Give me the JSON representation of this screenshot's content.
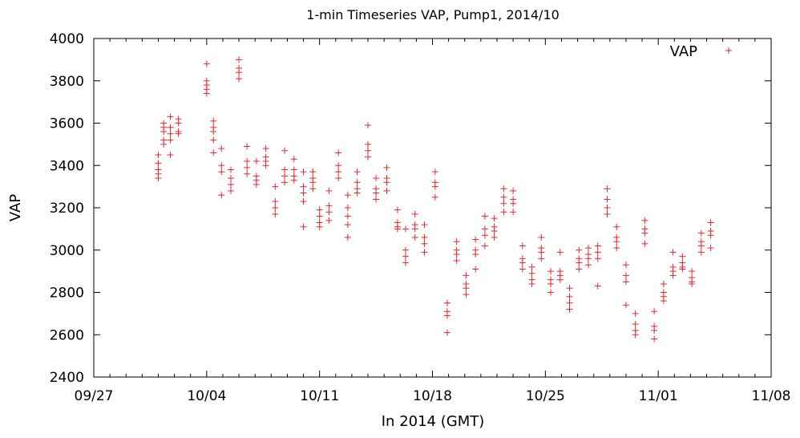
{
  "chart_data": {
    "type": "scatter",
    "title": "1-min Timeseries VAP, Pump1, 2014/10",
    "xlabel": "In 2014 (GMT)",
    "ylabel": "VAP",
    "x_unit": "date",
    "xlim": [
      "2014-09-27",
      "2014-11-08"
    ],
    "ylim": [
      2400,
      4000
    ],
    "x_ticks": [
      "09/27",
      "10/04",
      "10/11",
      "10/18",
      "10/25",
      "11/01",
      "11/08"
    ],
    "y_ticks": [
      "2400",
      "2600",
      "2800",
      "3000",
      "3200",
      "3400",
      "3600",
      "3800",
      "4000"
    ],
    "grid": false,
    "legend": {
      "position": "top-right",
      "entries": [
        "VAP"
      ]
    },
    "marker": "plus",
    "series_color": "#e8262d",
    "series": [
      {
        "name": "VAP",
        "points": [
          [
            "2014-10-01 00:00",
            3450
          ],
          [
            "2014-10-01 00:00",
            3410
          ],
          [
            "2014-10-01 00:00",
            3380
          ],
          [
            "2014-10-01 00:00",
            3360
          ],
          [
            "2014-10-01 00:00",
            3340
          ],
          [
            "2014-10-01 08:00",
            3560
          ],
          [
            "2014-10-01 08:00",
            3600
          ],
          [
            "2014-10-01 08:00",
            3580
          ],
          [
            "2014-10-01 08:00",
            3520
          ],
          [
            "2014-10-01 08:00",
            3500
          ],
          [
            "2014-10-01 18:00",
            3630
          ],
          [
            "2014-10-01 18:00",
            3580
          ],
          [
            "2014-10-01 18:00",
            3550
          ],
          [
            "2014-10-01 18:00",
            3520
          ],
          [
            "2014-10-01 18:00",
            3450
          ],
          [
            "2014-10-02 06:00",
            3620
          ],
          [
            "2014-10-02 06:00",
            3600
          ],
          [
            "2014-10-02 06:00",
            3560
          ],
          [
            "2014-10-02 06:00",
            3550
          ],
          [
            "2014-10-04 00:00",
            3880
          ],
          [
            "2014-10-04 00:00",
            3800
          ],
          [
            "2014-10-04 00:00",
            3780
          ],
          [
            "2014-10-04 00:00",
            3760
          ],
          [
            "2014-10-04 00:00",
            3740
          ],
          [
            "2014-10-04 10:00",
            3610
          ],
          [
            "2014-10-04 10:00",
            3580
          ],
          [
            "2014-10-04 10:00",
            3560
          ],
          [
            "2014-10-04 10:00",
            3520
          ],
          [
            "2014-10-04 10:00",
            3460
          ],
          [
            "2014-10-04 22:00",
            3480
          ],
          [
            "2014-10-04 22:00",
            3400
          ],
          [
            "2014-10-04 22:00",
            3370
          ],
          [
            "2014-10-04 22:00",
            3260
          ],
          [
            "2014-10-05 12:00",
            3380
          ],
          [
            "2014-10-05 12:00",
            3340
          ],
          [
            "2014-10-05 12:00",
            3310
          ],
          [
            "2014-10-05 12:00",
            3280
          ],
          [
            "2014-10-06 00:00",
            3900
          ],
          [
            "2014-10-06 00:00",
            3860
          ],
          [
            "2014-10-06 00:00",
            3840
          ],
          [
            "2014-10-06 00:00",
            3810
          ],
          [
            "2014-10-06 12:00",
            3490
          ],
          [
            "2014-10-06 12:00",
            3420
          ],
          [
            "2014-10-06 12:00",
            3390
          ],
          [
            "2014-10-06 12:00",
            3360
          ],
          [
            "2014-10-07 02:00",
            3420
          ],
          [
            "2014-10-07 02:00",
            3350
          ],
          [
            "2014-10-07 02:00",
            3330
          ],
          [
            "2014-10-07 02:00",
            3310
          ],
          [
            "2014-10-07 16:00",
            3480
          ],
          [
            "2014-10-07 16:00",
            3440
          ],
          [
            "2014-10-07 16:00",
            3420
          ],
          [
            "2014-10-07 16:00",
            3400
          ],
          [
            "2014-10-08 06:00",
            3300
          ],
          [
            "2014-10-08 06:00",
            3230
          ],
          [
            "2014-10-08 06:00",
            3200
          ],
          [
            "2014-10-08 06:00",
            3170
          ],
          [
            "2014-10-08 20:00",
            3470
          ],
          [
            "2014-10-08 20:00",
            3380
          ],
          [
            "2014-10-08 20:00",
            3350
          ],
          [
            "2014-10-08 20:00",
            3320
          ],
          [
            "2014-10-09 10:00",
            3430
          ],
          [
            "2014-10-09 10:00",
            3380
          ],
          [
            "2014-10-09 10:00",
            3350
          ],
          [
            "2014-10-09 10:00",
            3330
          ],
          [
            "2014-10-10 00:00",
            3370
          ],
          [
            "2014-10-10 00:00",
            3300
          ],
          [
            "2014-10-10 00:00",
            3270
          ],
          [
            "2014-10-10 00:00",
            3230
          ],
          [
            "2014-10-10 00:00",
            3110
          ],
          [
            "2014-10-10 14:00",
            3370
          ],
          [
            "2014-10-10 14:00",
            3340
          ],
          [
            "2014-10-10 14:00",
            3320
          ],
          [
            "2014-10-10 14:00",
            3290
          ],
          [
            "2014-10-11 00:00",
            3190
          ],
          [
            "2014-10-11 00:00",
            3160
          ],
          [
            "2014-10-11 00:00",
            3130
          ],
          [
            "2014-10-11 00:00",
            3110
          ],
          [
            "2014-10-11 14:00",
            3280
          ],
          [
            "2014-10-11 14:00",
            3210
          ],
          [
            "2014-10-11 14:00",
            3180
          ],
          [
            "2014-10-11 14:00",
            3140
          ],
          [
            "2014-10-12 04:00",
            3460
          ],
          [
            "2014-10-12 04:00",
            3400
          ],
          [
            "2014-10-12 04:00",
            3370
          ],
          [
            "2014-10-12 04:00",
            3340
          ],
          [
            "2014-10-12 18:00",
            3260
          ],
          [
            "2014-10-12 18:00",
            3200
          ],
          [
            "2014-10-12 18:00",
            3160
          ],
          [
            "2014-10-12 18:00",
            3120
          ],
          [
            "2014-10-12 18:00",
            3060
          ],
          [
            "2014-10-13 08:00",
            3370
          ],
          [
            "2014-10-13 08:00",
            3320
          ],
          [
            "2014-10-13 08:00",
            3290
          ],
          [
            "2014-10-13 08:00",
            3270
          ],
          [
            "2014-10-14 00:00",
            3590
          ],
          [
            "2014-10-14 00:00",
            3500
          ],
          [
            "2014-10-14 00:00",
            3470
          ],
          [
            "2014-10-14 00:00",
            3440
          ],
          [
            "2014-10-14 12:00",
            3340
          ],
          [
            "2014-10-14 12:00",
            3290
          ],
          [
            "2014-10-14 12:00",
            3270
          ],
          [
            "2014-10-14 12:00",
            3240
          ],
          [
            "2014-10-15 04:00",
            3390
          ],
          [
            "2014-10-15 04:00",
            3340
          ],
          [
            "2014-10-15 04:00",
            3320
          ],
          [
            "2014-10-15 04:00",
            3280
          ],
          [
            "2014-10-15 20:00",
            3190
          ],
          [
            "2014-10-15 20:00",
            3130
          ],
          [
            "2014-10-15 20:00",
            3110
          ],
          [
            "2014-10-15 20:00",
            3100
          ],
          [
            "2014-10-16 08:00",
            3100
          ],
          [
            "2014-10-16 08:00",
            3000
          ],
          [
            "2014-10-16 08:00",
            2970
          ],
          [
            "2014-10-16 08:00",
            2940
          ],
          [
            "2014-10-16 22:00",
            3170
          ],
          [
            "2014-10-16 22:00",
            3120
          ],
          [
            "2014-10-16 22:00",
            3100
          ],
          [
            "2014-10-16 22:00",
            3060
          ],
          [
            "2014-10-17 12:00",
            3120
          ],
          [
            "2014-10-17 12:00",
            3060
          ],
          [
            "2014-10-17 12:00",
            3030
          ],
          [
            "2014-10-17 12:00",
            2990
          ],
          [
            "2014-10-18 04:00",
            3370
          ],
          [
            "2014-10-18 04:00",
            3320
          ],
          [
            "2014-10-18 04:00",
            3300
          ],
          [
            "2014-10-18 04:00",
            3250
          ],
          [
            "2014-10-18 22:00",
            2750
          ],
          [
            "2014-10-18 22:00",
            2710
          ],
          [
            "2014-10-18 22:00",
            2690
          ],
          [
            "2014-10-18 22:00",
            2610
          ],
          [
            "2014-10-19 12:00",
            3040
          ],
          [
            "2014-10-19 12:00",
            3000
          ],
          [
            "2014-10-19 12:00",
            2980
          ],
          [
            "2014-10-19 12:00",
            2950
          ],
          [
            "2014-10-20 02:00",
            2880
          ],
          [
            "2014-10-20 02:00",
            2840
          ],
          [
            "2014-10-20 02:00",
            2820
          ],
          [
            "2014-10-20 02:00",
            2790
          ],
          [
            "2014-10-20 16:00",
            3050
          ],
          [
            "2014-10-20 16:00",
            3000
          ],
          [
            "2014-10-20 16:00",
            2980
          ],
          [
            "2014-10-20 16:00",
            2910
          ],
          [
            "2014-10-21 06:00",
            3160
          ],
          [
            "2014-10-21 06:00",
            3100
          ],
          [
            "2014-10-21 06:00",
            3070
          ],
          [
            "2014-10-21 06:00",
            3020
          ],
          [
            "2014-10-21 20:00",
            3150
          ],
          [
            "2014-10-21 20:00",
            3110
          ],
          [
            "2014-10-21 20:00",
            3090
          ],
          [
            "2014-10-21 20:00",
            3060
          ],
          [
            "2014-10-22 10:00",
            3290
          ],
          [
            "2014-10-22 10:00",
            3250
          ],
          [
            "2014-10-22 10:00",
            3220
          ],
          [
            "2014-10-22 10:00",
            3180
          ],
          [
            "2014-10-23 00:00",
            3280
          ],
          [
            "2014-10-23 00:00",
            3240
          ],
          [
            "2014-10-23 00:00",
            3220
          ],
          [
            "2014-10-23 00:00",
            3180
          ],
          [
            "2014-10-23 14:00",
            3020
          ],
          [
            "2014-10-23 14:00",
            2960
          ],
          [
            "2014-10-23 14:00",
            2940
          ],
          [
            "2014-10-23 14:00",
            2910
          ],
          [
            "2014-10-24 04:00",
            2920
          ],
          [
            "2014-10-24 04:00",
            2890
          ],
          [
            "2014-10-24 04:00",
            2860
          ],
          [
            "2014-10-24 04:00",
            2840
          ],
          [
            "2014-10-24 18:00",
            3060
          ],
          [
            "2014-10-24 18:00",
            3010
          ],
          [
            "2014-10-24 18:00",
            2990
          ],
          [
            "2014-10-24 18:00",
            2960
          ],
          [
            "2014-10-25 08:00",
            2900
          ],
          [
            "2014-10-25 08:00",
            2860
          ],
          [
            "2014-10-25 08:00",
            2840
          ],
          [
            "2014-10-25 08:00",
            2800
          ],
          [
            "2014-10-25 22:00",
            2990
          ],
          [
            "2014-10-25 22:00",
            2900
          ],
          [
            "2014-10-25 22:00",
            2880
          ],
          [
            "2014-10-25 22:00",
            2860
          ],
          [
            "2014-10-26 12:00",
            2820
          ],
          [
            "2014-10-26 12:00",
            2780
          ],
          [
            "2014-10-26 12:00",
            2750
          ],
          [
            "2014-10-26 12:00",
            2720
          ],
          [
            "2014-10-27 02:00",
            3000
          ],
          [
            "2014-10-27 02:00",
            2960
          ],
          [
            "2014-10-27 02:00",
            2940
          ],
          [
            "2014-10-27 02:00",
            2910
          ],
          [
            "2014-10-27 16:00",
            3010
          ],
          [
            "2014-10-27 16:00",
            2980
          ],
          [
            "2014-10-27 16:00",
            2960
          ],
          [
            "2014-10-27 16:00",
            2930
          ],
          [
            "2014-10-28 06:00",
            3020
          ],
          [
            "2014-10-28 06:00",
            2990
          ],
          [
            "2014-10-28 06:00",
            2960
          ],
          [
            "2014-10-28 06:00",
            2830
          ],
          [
            "2014-10-28 20:00",
            3290
          ],
          [
            "2014-10-28 20:00",
            3240
          ],
          [
            "2014-10-28 20:00",
            3200
          ],
          [
            "2014-10-28 20:00",
            3170
          ],
          [
            "2014-10-29 10:00",
            3110
          ],
          [
            "2014-10-29 10:00",
            3060
          ],
          [
            "2014-10-29 10:00",
            3040
          ],
          [
            "2014-10-29 10:00",
            3010
          ],
          [
            "2014-10-30 00:00",
            2930
          ],
          [
            "2014-10-30 00:00",
            2880
          ],
          [
            "2014-10-30 00:00",
            2850
          ],
          [
            "2014-10-30 00:00",
            2740
          ],
          [
            "2014-10-30 14:00",
            2700
          ],
          [
            "2014-10-30 14:00",
            2650
          ],
          [
            "2014-10-30 14:00",
            2620
          ],
          [
            "2014-10-30 14:00",
            2600
          ],
          [
            "2014-10-31 04:00",
            3140
          ],
          [
            "2014-10-31 04:00",
            3100
          ],
          [
            "2014-10-31 04:00",
            3080
          ],
          [
            "2014-10-31 04:00",
            3030
          ],
          [
            "2014-10-31 18:00",
            2710
          ],
          [
            "2014-10-31 18:00",
            2640
          ],
          [
            "2014-10-31 18:00",
            2620
          ],
          [
            "2014-10-31 18:00",
            2580
          ],
          [
            "2014-11-01 08:00",
            2840
          ],
          [
            "2014-11-01 08:00",
            2800
          ],
          [
            "2014-11-01 08:00",
            2780
          ],
          [
            "2014-11-01 08:00",
            2760
          ],
          [
            "2014-11-01 22:00",
            2990
          ],
          [
            "2014-11-01 22:00",
            2920
          ],
          [
            "2014-11-01 22:00",
            2900
          ],
          [
            "2014-11-01 22:00",
            2880
          ],
          [
            "2014-11-02 12:00",
            2970
          ],
          [
            "2014-11-02 12:00",
            2940
          ],
          [
            "2014-11-02 12:00",
            2920
          ],
          [
            "2014-11-02 12:00",
            2910
          ],
          [
            "2014-11-03 02:00",
            2900
          ],
          [
            "2014-11-03 02:00",
            2870
          ],
          [
            "2014-11-03 02:00",
            2850
          ],
          [
            "2014-11-03 02:00",
            2840
          ],
          [
            "2014-11-03 16:00",
            3080
          ],
          [
            "2014-11-03 16:00",
            3040
          ],
          [
            "2014-11-03 16:00",
            3020
          ],
          [
            "2014-11-03 16:00",
            2990
          ],
          [
            "2014-11-04 06:00",
            3130
          ],
          [
            "2014-11-04 06:00",
            3090
          ],
          [
            "2014-11-04 06:00",
            3070
          ],
          [
            "2014-11-04 06:00",
            3010
          ]
        ]
      }
    ]
  }
}
